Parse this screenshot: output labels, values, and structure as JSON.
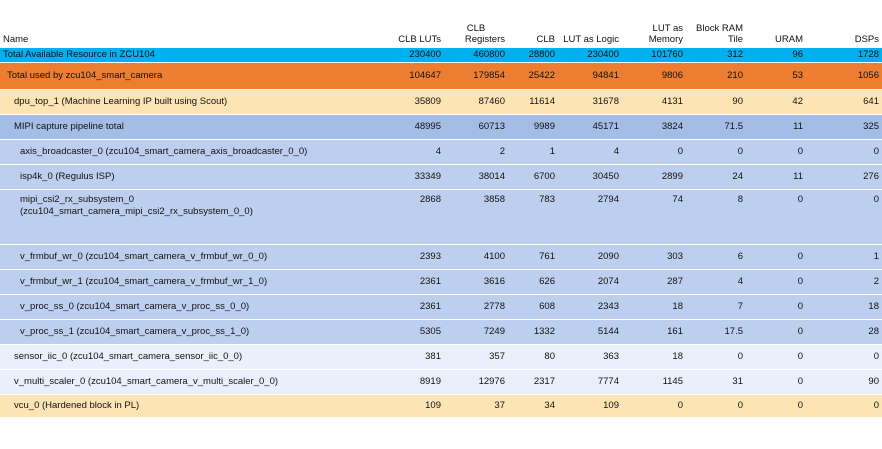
{
  "columns": {
    "name": "Name",
    "clb_luts": "CLB LUTs",
    "clb_registers_l1": "CLB",
    "clb_registers_l2": "Registers",
    "clb": "CLB",
    "lut_logic": "LUT as Logic",
    "lut_memory_l1": "LUT as",
    "lut_memory_l2": "Memory",
    "bram_l1": "Block RAM",
    "bram_l2": "Tile",
    "uram": "URAM",
    "dsps": "DSPs"
  },
  "rows": [
    {
      "name": "Total Available Resource in ZCU104",
      "clb_luts": "230400",
      "clb_registers": "460800",
      "clb": "28800",
      "lut_logic": "230400",
      "lut_memory": "101760",
      "bram": "312",
      "uram": "96",
      "dsps": "1728"
    },
    {
      "name": "Total used by zcu104_smart_camera",
      "clb_luts": "104647",
      "clb_registers": "179854",
      "clb": "25422",
      "lut_logic": "94841",
      "lut_memory": "9806",
      "bram": "210",
      "uram": "53",
      "dsps": "1056"
    },
    {
      "name": "dpu_top_1 (Machine Learning IP built using Scout)",
      "clb_luts": "35809",
      "clb_registers": "87460",
      "clb": "11614",
      "lut_logic": "31678",
      "lut_memory": "4131",
      "bram": "90",
      "uram": "42",
      "dsps": "641"
    },
    {
      "name": "MIPI capture pipeline total",
      "clb_luts": "48995",
      "clb_registers": "60713",
      "clb": "9989",
      "lut_logic": "45171",
      "lut_memory": "3824",
      "bram": "71.5",
      "uram": "11",
      "dsps": "325"
    },
    {
      "name": "axis_broadcaster_0 (zcu104_smart_camera_axis_broadcaster_0_0)",
      "clb_luts": "4",
      "clb_registers": "2",
      "clb": "1",
      "lut_logic": "4",
      "lut_memory": "0",
      "bram": "0",
      "uram": "0",
      "dsps": "0"
    },
    {
      "name": "isp4k_0 (Regulus ISP)",
      "clb_luts": "33349",
      "clb_registers": "38014",
      "clb": "6700",
      "lut_logic": "30450",
      "lut_memory": "2899",
      "bram": "24",
      "uram": "11",
      "dsps": "276"
    },
    {
      "name_l1": "mipi_csi2_rx_subsystem_0",
      "name_l2": "(zcu104_smart_camera_mipi_csi2_rx_subsystem_0_0)",
      "clb_luts": "2868",
      "clb_registers": "3858",
      "clb": "783",
      "lut_logic": "2794",
      "lut_memory": "74",
      "bram": "8",
      "uram": "0",
      "dsps": "0"
    },
    {
      "name": "v_frmbuf_wr_0 (zcu104_smart_camera_v_frmbuf_wr_0_0)",
      "clb_luts": "2393",
      "clb_registers": "4100",
      "clb": "761",
      "lut_logic": "2090",
      "lut_memory": "303",
      "bram": "6",
      "uram": "0",
      "dsps": "1"
    },
    {
      "name": "v_frmbuf_wr_1 (zcu104_smart_camera_v_frmbuf_wr_1_0)",
      "clb_luts": "2361",
      "clb_registers": "3616",
      "clb": "626",
      "lut_logic": "2074",
      "lut_memory": "287",
      "bram": "4",
      "uram": "0",
      "dsps": "2"
    },
    {
      "name": "v_proc_ss_0 (zcu104_smart_camera_v_proc_ss_0_0)",
      "clb_luts": "2361",
      "clb_registers": "2778",
      "clb": "608",
      "lut_logic": "2343",
      "lut_memory": "18",
      "bram": "7",
      "uram": "0",
      "dsps": "18"
    },
    {
      "name": "v_proc_ss_1 (zcu104_smart_camera_v_proc_ss_1_0)",
      "clb_luts": "5305",
      "clb_registers": "7249",
      "clb": "1332",
      "lut_logic": "5144",
      "lut_memory": "161",
      "bram": "17.5",
      "uram": "0",
      "dsps": "28"
    },
    {
      "name": "sensor_iic_0 (zcu104_smart_camera_sensor_iic_0_0)",
      "clb_luts": "381",
      "clb_registers": "357",
      "clb": "80",
      "lut_logic": "363",
      "lut_memory": "18",
      "bram": "0",
      "uram": "0",
      "dsps": "0"
    },
    {
      "name": "v_multi_scaler_0 (zcu104_smart_camera_v_multi_scaler_0_0)",
      "clb_luts": "8919",
      "clb_registers": "12976",
      "clb": "2317",
      "lut_logic": "7774",
      "lut_memory": "1145",
      "bram": "31",
      "uram": "0",
      "dsps": "90"
    },
    {
      "name": "vcu_0 (Hardened block in PL)",
      "clb_luts": "109",
      "clb_registers": "37",
      "clb": "34",
      "lut_logic": "109",
      "lut_memory": "0",
      "bram": "0",
      "uram": "0",
      "dsps": "0"
    }
  ],
  "colors": {
    "total_available": "#00b0f0",
    "total_used": "#ed7d31",
    "ml_ip": "#fde4b5",
    "mipi_total": "#a4bde6",
    "mipi_sub": "#bdcfee",
    "plain": "#eaf0fb"
  }
}
